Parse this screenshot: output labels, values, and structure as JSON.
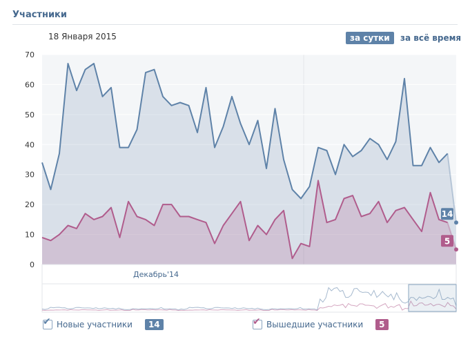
{
  "header": {
    "title": "Участники",
    "date": "18 Января 2015",
    "period_day": "за сутки",
    "period_all": "за всё время"
  },
  "legend": {
    "new_label": "Новые участники",
    "new_count": "14",
    "left_label": "Вышедшие участники",
    "left_count": "5"
  },
  "colors": {
    "new": "#5e82a8",
    "left": "#b05c8c",
    "axis_text": "#333333",
    "link": "#45688e"
  },
  "chart_data": {
    "type": "area",
    "title": "Участники",
    "ylim": [
      0,
      70
    ],
    "yticks": [
      0,
      10,
      20,
      30,
      40,
      50,
      60,
      70
    ],
    "x_label": "Декабрь'14",
    "series": [
      {
        "name": "Новые участники",
        "values": [
          34,
          25,
          37,
          67,
          58,
          65,
          67,
          56,
          59,
          39,
          39,
          45,
          64,
          65,
          56,
          53,
          54,
          53,
          44,
          59,
          39,
          46,
          56,
          47,
          40,
          48,
          32,
          52,
          35,
          25,
          22,
          26,
          39,
          38,
          30,
          40,
          36,
          38,
          42,
          40,
          35,
          41,
          62,
          33,
          33,
          39,
          34,
          37,
          14
        ],
        "end_label": "14"
      },
      {
        "name": "Вышедшие участники",
        "values": [
          9,
          8,
          10,
          13,
          12,
          17,
          15,
          16,
          19,
          9,
          21,
          16,
          15,
          13,
          20,
          20,
          16,
          16,
          15,
          14,
          7,
          13,
          17,
          21,
          8,
          13,
          10,
          15,
          18,
          2,
          7,
          6,
          28,
          14,
          15,
          22,
          23,
          16,
          17,
          21,
          14,
          18,
          19,
          15,
          11,
          24,
          15,
          14,
          5
        ],
        "end_label": "5"
      }
    ]
  }
}
